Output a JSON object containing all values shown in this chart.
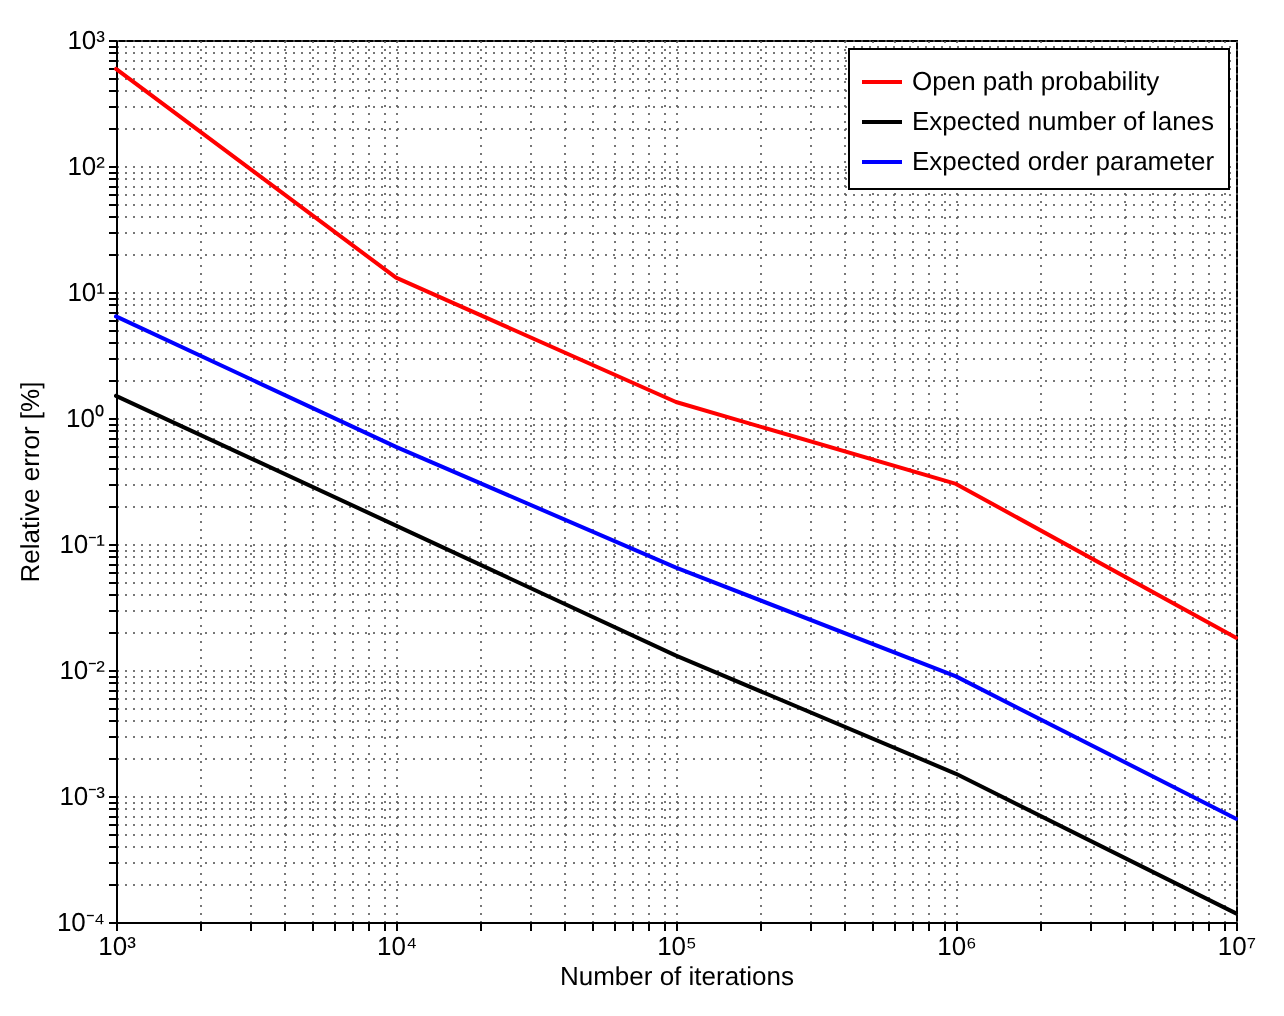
{
  "chart_data": {
    "type": "line",
    "xlabel": "Number of iterations",
    "ylabel": "Relative error [%]",
    "log": "xy",
    "grid": true,
    "legend": "top right",
    "line_style": "solid",
    "marker": "none",
    "x": [
      1000,
      10000,
      100000,
      1000000,
      10000000
    ],
    "series": [
      {
        "name": "Open path probability",
        "color": "#ff0000",
        "values": [
          590,
          13,
          1.34,
          0.3,
          0.018
        ]
      },
      {
        "name": "Expected number of lanes",
        "color": "#000000",
        "values": [
          1.5,
          0.14,
          0.013,
          0.0015,
          0.000117
        ]
      },
      {
        "name": "Expected order parameter",
        "color": "#0000ff",
        "values": [
          6.4,
          0.59,
          0.065,
          0.0089,
          0.00066
        ]
      }
    ],
    "xlim": [
      1000,
      10000000
    ],
    "ylim": [
      0.0001,
      1000
    ],
    "xticks": [
      {
        "value": 1000,
        "label": "10³"
      },
      {
        "value": 2000,
        "label": null
      },
      {
        "value": 3000,
        "label": null
      },
      {
        "value": 4000,
        "label": null
      },
      {
        "value": 5000,
        "label": null
      },
      {
        "value": 6000,
        "label": null
      },
      {
        "value": 7000,
        "label": null
      },
      {
        "value": 8000,
        "label": null
      },
      {
        "value": 9000,
        "label": null
      },
      {
        "value": 10000,
        "label": "10⁴"
      },
      {
        "value": 20000,
        "label": null
      },
      {
        "value": 30000,
        "label": null
      },
      {
        "value": 40000,
        "label": null
      },
      {
        "value": 50000,
        "label": null
      },
      {
        "value": 60000,
        "label": null
      },
      {
        "value": 70000,
        "label": null
      },
      {
        "value": 80000,
        "label": null
      },
      {
        "value": 90000,
        "label": null
      },
      {
        "value": 100000,
        "label": "10⁵"
      },
      {
        "value": 200000,
        "label": null
      },
      {
        "value": 300000,
        "label": null
      },
      {
        "value": 400000,
        "label": null
      },
      {
        "value": 500000,
        "label": null
      },
      {
        "value": 600000,
        "label": null
      },
      {
        "value": 700000,
        "label": null
      },
      {
        "value": 800000,
        "label": null
      },
      {
        "value": 900000,
        "label": null
      },
      {
        "value": 1000000,
        "label": "10⁶"
      },
      {
        "value": 2000000,
        "label": null
      },
      {
        "value": 3000000,
        "label": null
      },
      {
        "value": 4000000,
        "label": null
      },
      {
        "value": 5000000,
        "label": null
      },
      {
        "value": 6000000,
        "label": null
      },
      {
        "value": 7000000,
        "label": null
      },
      {
        "value": 8000000,
        "label": null
      },
      {
        "value": 9000000,
        "label": null
      },
      {
        "value": 10000000,
        "label": "10⁷"
      }
    ],
    "yticks": [
      {
        "value": 0.0001,
        "label": "10⁻⁴"
      },
      {
        "value": 0.0002,
        "label": null
      },
      {
        "value": 0.0003,
        "label": null
      },
      {
        "value": 0.0004,
        "label": null
      },
      {
        "value": 0.0005,
        "label": null
      },
      {
        "value": 0.0006,
        "label": null
      },
      {
        "value": 0.0007,
        "label": null
      },
      {
        "value": 0.0008,
        "label": null
      },
      {
        "value": 0.0009,
        "label": null
      },
      {
        "value": 0.001,
        "label": "10⁻³"
      },
      {
        "value": 0.002,
        "label": null
      },
      {
        "value": 0.003,
        "label": null
      },
      {
        "value": 0.004,
        "label": null
      },
      {
        "value": 0.005,
        "label": null
      },
      {
        "value": 0.006,
        "label": null
      },
      {
        "value": 0.007,
        "label": null
      },
      {
        "value": 0.008,
        "label": null
      },
      {
        "value": 0.009,
        "label": null
      },
      {
        "value": 0.01,
        "label": "10⁻²"
      },
      {
        "value": 0.02,
        "label": null
      },
      {
        "value": 0.03,
        "label": null
      },
      {
        "value": 0.04,
        "label": null
      },
      {
        "value": 0.05,
        "label": null
      },
      {
        "value": 0.06,
        "label": null
      },
      {
        "value": 0.07,
        "label": null
      },
      {
        "value": 0.08,
        "label": null
      },
      {
        "value": 0.09,
        "label": null
      },
      {
        "value": 0.1,
        "label": "10⁻¹"
      },
      {
        "value": 0.2,
        "label": null
      },
      {
        "value": 0.3,
        "label": null
      },
      {
        "value": 0.4,
        "label": null
      },
      {
        "value": 0.5,
        "label": null
      },
      {
        "value": 0.6,
        "label": null
      },
      {
        "value": 0.7,
        "label": null
      },
      {
        "value": 0.8,
        "label": null
      },
      {
        "value": 0.9,
        "label": null
      },
      {
        "value": 1,
        "label": "10⁰"
      },
      {
        "value": 2,
        "label": null
      },
      {
        "value": 3,
        "label": null
      },
      {
        "value": 4,
        "label": null
      },
      {
        "value": 5,
        "label": null
      },
      {
        "value": 6,
        "label": null
      },
      {
        "value": 7,
        "label": null
      },
      {
        "value": 8,
        "label": null
      },
      {
        "value": 9,
        "label": null
      },
      {
        "value": 10,
        "label": "10¹"
      },
      {
        "value": 20,
        "label": null
      },
      {
        "value": 30,
        "label": null
      },
      {
        "value": 40,
        "label": null
      },
      {
        "value": 50,
        "label": null
      },
      {
        "value": 60,
        "label": null
      },
      {
        "value": 70,
        "label": null
      },
      {
        "value": 80,
        "label": null
      },
      {
        "value": 90,
        "label": null
      },
      {
        "value": 100,
        "label": "10²"
      },
      {
        "value": 200,
        "label": null
      },
      {
        "value": 300,
        "label": null
      },
      {
        "value": 400,
        "label": null
      },
      {
        "value": 500,
        "label": null
      },
      {
        "value": 600,
        "label": null
      },
      {
        "value": 700,
        "label": null
      },
      {
        "value": 800,
        "label": null
      },
      {
        "value": 900,
        "label": null
      },
      {
        "value": 1000,
        "label": "10³"
      }
    ]
  }
}
